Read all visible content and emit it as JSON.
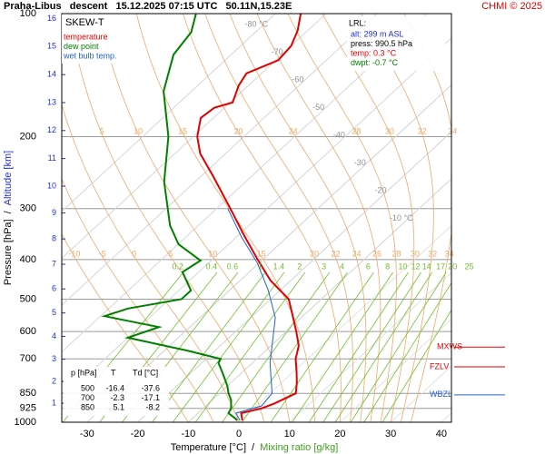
{
  "chart_data": {
    "type": "skew-t",
    "title": "Praha-Libus   descent   15.12.2025 07:15 UTC   50.11N,15.23E",
    "credit": "CHMI © 2025",
    "diagram_label": "SKEW-T",
    "x_label": "Temperature [°C]",
    "x_label_separator": "/",
    "x_label2": "Mixing ratio [g/kg]",
    "y_label": "Pressure [hPa]",
    "y_label_separator": "/",
    "y2_label": "Altitude [km]",
    "xlim": [
      -35,
      42
    ],
    "xticks": [
      -30,
      -20,
      -10,
      0,
      10,
      20,
      30,
      40
    ],
    "ylim": [
      1000,
      100
    ],
    "log_scale_y": true,
    "yticks": [
      100,
      200,
      300,
      400,
      500,
      600,
      700,
      850,
      925,
      1000
    ],
    "y2ticks": [
      1,
      2,
      3,
      4,
      5,
      6,
      7,
      8,
      9,
      10,
      11,
      12,
      13,
      14,
      15,
      16
    ],
    "grid": true,
    "series": [
      {
        "name": "temperature",
        "color": "#e00000",
        "pressure": [
          990,
          950,
          925,
          900,
          850,
          800,
          750,
          700,
          650,
          600,
          550,
          500,
          450,
          400,
          350,
          300,
          250,
          220,
          200,
          180,
          170,
          165,
          150,
          140,
          130,
          120,
          110,
          100
        ],
        "values": [
          0.3,
          -1.5,
          1.5,
          3,
          5.1,
          3,
          0.5,
          -2.3,
          -4.5,
          -8,
          -12,
          -16.4,
          -24,
          -31,
          -38.7,
          -47.3,
          -57.6,
          -65,
          -69.2,
          -72.5,
          -72,
          -69.5,
          -71.9,
          -73,
          -69.5,
          -70,
          -72,
          -75
        ]
      },
      {
        "name": "dew point",
        "color": "#008000",
        "pressure": [
          990,
          979,
          950,
          925,
          882,
          850,
          814,
          761,
          716,
          700,
          668,
          621,
          585,
          550,
          527,
          500,
          476,
          429,
          402,
          367,
          330,
          258,
          200,
          155,
          126,
          111,
          100
        ],
        "values": [
          -0.7,
          -1.5,
          -4,
          -4.5,
          -6.3,
          -8.2,
          -10.1,
          -13.5,
          -16.7,
          -17.1,
          -25.5,
          -40,
          -36.1,
          -49.2,
          -46.2,
          -37.6,
          -37.6,
          -43.2,
          -42.1,
          -49.9,
          -55.6,
          -66.1,
          -74.9,
          -85.5,
          -91.4,
          -92.7,
          -95.7
        ]
      },
      {
        "name": "wet bulb temp.",
        "color": "#2060d0",
        "pressure": [
          990,
          950,
          912,
          850,
          716,
          555,
          476,
          408,
          353,
          300
        ],
        "values": [
          -0.2,
          -2.5,
          1,
          0.4,
          -6.5,
          -15.1,
          -22.3,
          -30.3,
          -38.9,
          -47.8
        ]
      }
    ],
    "isotherm_labels": [
      {
        "value": -80,
        "label": "-80 °C"
      },
      -70,
      -60,
      -50,
      -40,
      -30,
      -20,
      {
        "value": -10,
        "label": "-10 °C"
      }
    ],
    "isotherm_color": "#909090",
    "moist_adiabats": [
      -10,
      -5,
      0,
      5,
      10,
      15,
      20,
      22,
      24,
      26,
      28,
      30,
      32,
      34
    ],
    "moist_adiabat_labels_upper": [
      5,
      10,
      15,
      20,
      24,
      28,
      30,
      32,
      34
    ],
    "adiabat_color": "#f0a868",
    "mixing_ratios": [
      0.2,
      0.4,
      0.6,
      1,
      1.4,
      2,
      3,
      4,
      6,
      8,
      10,
      12,
      14,
      17,
      20,
      25
    ],
    "mixing_ratio_color": "#70c030",
    "launch_info": {
      "title": "LRL:",
      "lines": [
        {
          "text": "alt: 299 m ASL",
          "color": "#2030d0"
        },
        {
          "text": "press: 990.5 hPa",
          "color": "#000000"
        },
        {
          "text": "temp: 0.3 °C",
          "color": "#e00000"
        },
        {
          "text": "dwpt: -0.7 °C",
          "color": "#008000"
        }
      ]
    },
    "levels": [
      {
        "name": "MXWS",
        "pressure": 655,
        "color": "#e00000"
      },
      {
        "name": "FZLV",
        "pressure": 732,
        "color": "#e00000"
      },
      {
        "name": "WBZL",
        "pressure": 857,
        "color": "#2060d0"
      }
    ],
    "table": {
      "header": [
        "p [hPa]",
        "T",
        "Td [°C]"
      ],
      "rows": [
        [
          500,
          -16.4,
          -37.6
        ],
        [
          700,
          -2.3,
          -17.1
        ],
        [
          850,
          5.1,
          -8.2
        ]
      ]
    }
  }
}
